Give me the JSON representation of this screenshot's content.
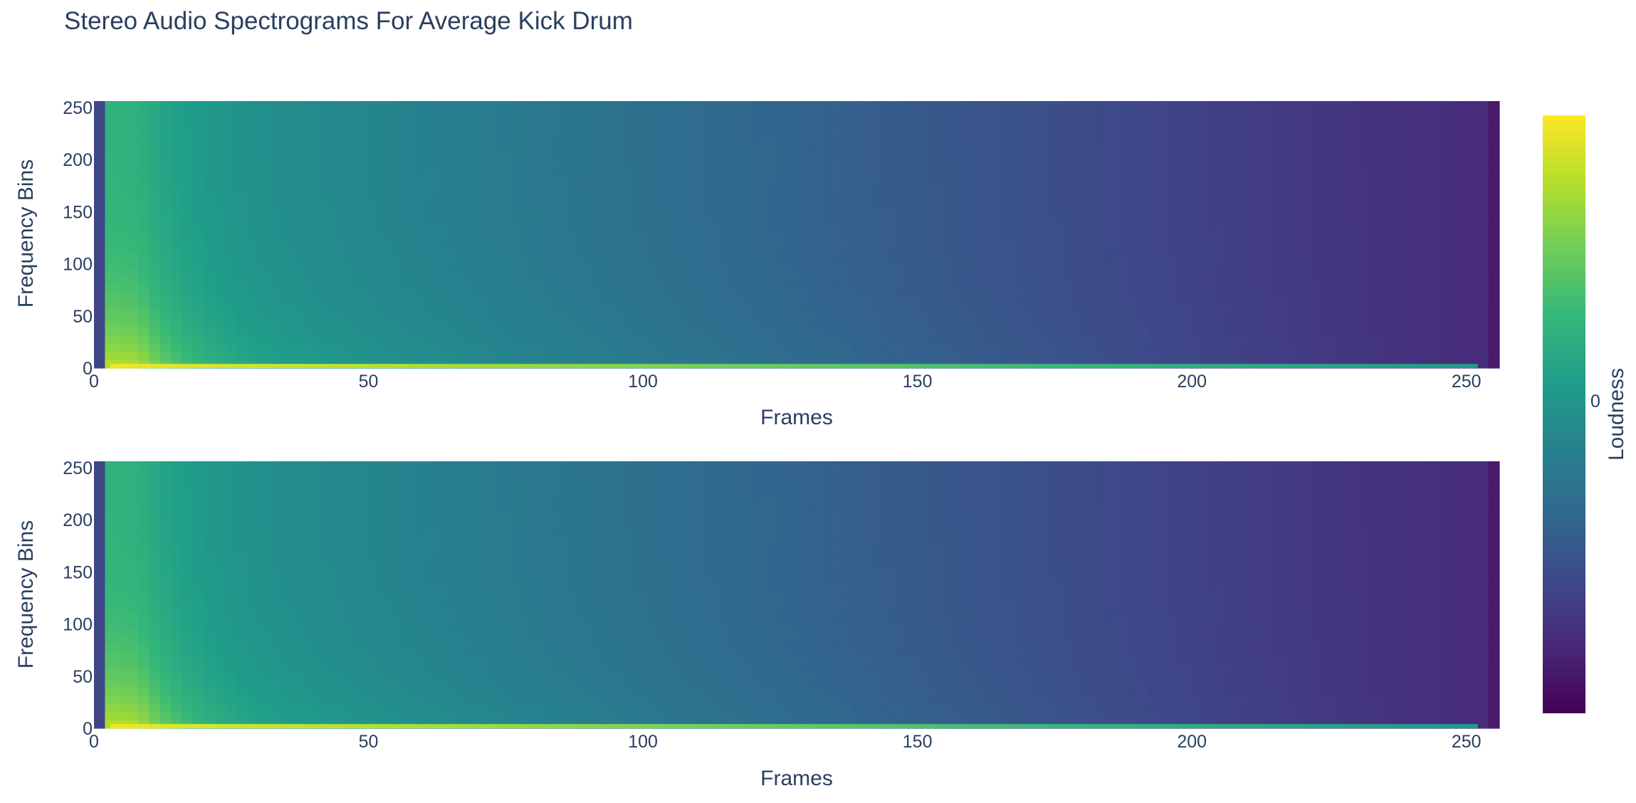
{
  "chart_data": {
    "type": "heatmap",
    "title": "Stereo Audio Spectrograms For Average Kick Drum",
    "subplots": [
      {
        "channel": "top",
        "xlabel": "Frames",
        "ylabel": "Frequency Bins",
        "xlim": [
          0,
          256
        ],
        "ylim": [
          0,
          256
        ],
        "xticks": [
          0,
          50,
          100,
          150,
          200,
          250
        ],
        "yticks": [
          0,
          50,
          100,
          150,
          200,
          250
        ],
        "description_values": {
          "onset_frame": 3,
          "peak_loudness_frame": 8,
          "low_freq_band_bins": [
            0,
            4
          ]
        }
      },
      {
        "channel": "bottom",
        "xlabel": "Frames",
        "ylabel": "Frequency Bins",
        "xlim": [
          0,
          256
        ],
        "ylim": [
          0,
          256
        ],
        "xticks": [
          0,
          50,
          100,
          150,
          200,
          250
        ],
        "yticks": [
          0,
          50,
          100,
          150,
          200,
          250
        ],
        "description_values": {
          "onset_frame": 3,
          "peak_loudness_frame": 8,
          "low_freq_band_bins": [
            0,
            4
          ]
        }
      }
    ],
    "colorbar": {
      "title": "Loudness",
      "tickvals": [
        0
      ],
      "ticktext": [
        "0"
      ],
      "colorscale": "Viridis",
      "colors": [
        "#440154",
        "#482878",
        "#3e4989",
        "#31688e",
        "#26828e",
        "#1f9e89",
        "#35b779",
        "#6ece58",
        "#b5de2b",
        "#fde725"
      ]
    },
    "grid": false,
    "legend": "none"
  }
}
